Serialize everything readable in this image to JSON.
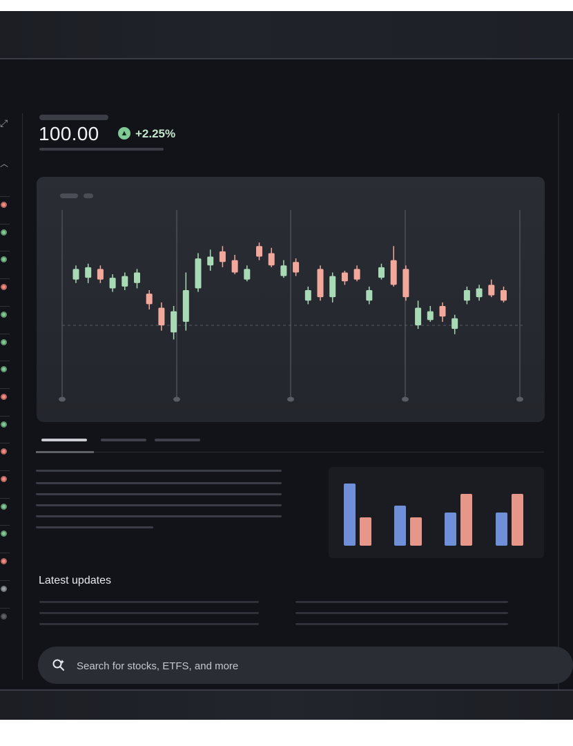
{
  "quote": {
    "price": "100.00",
    "change": "+2.25%",
    "change_icon": "trend-up-icon",
    "positive_color": "#81c995"
  },
  "rail": {
    "status": [
      "down",
      "up",
      "up",
      "down",
      "up",
      "up",
      "up",
      "down",
      "up",
      "down",
      "down",
      "up",
      "up",
      "down",
      "neutral",
      "neutral"
    ]
  },
  "chart_data": [
    {
      "type": "candlestick",
      "title": "",
      "xlabel": "",
      "ylabel": "",
      "grid": true,
      "reference_line": "dashed",
      "colors": {
        "up": "#a8dab5",
        "down": "#f2a89a"
      },
      "candles": [
        {
          "open": 26,
          "close": 32,
          "low": 24,
          "high": 34
        },
        {
          "open": 27,
          "close": 33,
          "low": 24,
          "high": 35
        },
        {
          "open": 32,
          "close": 26,
          "low": 24,
          "high": 34
        },
        {
          "open": 21,
          "close": 27,
          "low": 19,
          "high": 29
        },
        {
          "open": 22,
          "close": 28,
          "low": 20,
          "high": 30
        },
        {
          "open": 24,
          "close": 30,
          "low": 21,
          "high": 32
        },
        {
          "open": 18,
          "close": 12,
          "low": 9,
          "high": 20
        },
        {
          "open": 10,
          "close": 0,
          "low": -3,
          "high": 13
        },
        {
          "open": -4,
          "close": 8,
          "low": -8,
          "high": 11
        },
        {
          "open": 2,
          "close": 20,
          "low": -3,
          "high": 30
        },
        {
          "open": 21,
          "close": 38,
          "low": 19,
          "high": 41
        },
        {
          "open": 34,
          "close": 39,
          "low": 31,
          "high": 43
        },
        {
          "open": 42,
          "close": 36,
          "low": 33,
          "high": 45
        },
        {
          "open": 37,
          "close": 30,
          "low": 29,
          "high": 40
        },
        {
          "open": 26,
          "close": 32,
          "low": 25,
          "high": 34
        },
        {
          "open": 45,
          "close": 39,
          "low": 37,
          "high": 47
        },
        {
          "open": 41,
          "close": 34,
          "low": 33,
          "high": 44
        },
        {
          "open": 28,
          "close": 34,
          "low": 27,
          "high": 37
        },
        {
          "open": 36,
          "close": 30,
          "low": 28,
          "high": 38
        },
        {
          "open": 14,
          "close": 20,
          "low": 12,
          "high": 22
        },
        {
          "open": 32,
          "close": 16,
          "low": 14,
          "high": 34
        },
        {
          "open": 16,
          "close": 28,
          "low": 13,
          "high": 30
        },
        {
          "open": 30,
          "close": 25,
          "low": 23,
          "high": 31
        },
        {
          "open": 32,
          "close": 26,
          "low": 25,
          "high": 34
        },
        {
          "open": 14,
          "close": 20,
          "low": 12,
          "high": 22
        },
        {
          "open": 27,
          "close": 33,
          "low": 26,
          "high": 35
        },
        {
          "open": 37,
          "close": 23,
          "low": 22,
          "high": 45
        },
        {
          "open": 32,
          "close": 16,
          "low": 14,
          "high": 34
        },
        {
          "open": 0,
          "close": 10,
          "low": -2,
          "high": 14
        },
        {
          "open": 3,
          "close": 8,
          "low": 2,
          "high": 11
        },
        {
          "open": 11,
          "close": 5,
          "low": 2,
          "high": 13
        },
        {
          "open": -2,
          "close": 4,
          "low": -5,
          "high": 6
        },
        {
          "open": 14,
          "close": 20,
          "low": 12,
          "high": 22
        },
        {
          "open": 16,
          "close": 21,
          "low": 14,
          "high": 23
        },
        {
          "open": 23,
          "close": 17,
          "low": 16,
          "high": 26
        },
        {
          "open": 20,
          "close": 14,
          "low": 13,
          "high": 22
        }
      ]
    },
    {
      "type": "bar",
      "title": "",
      "xlabel": "",
      "ylabel": "",
      "categories": [
        "",
        "",
        "",
        ""
      ],
      "series": [
        {
          "color": "#6f8fd8",
          "values": [
            90,
            58,
            48,
            48
          ]
        },
        {
          "color": "#e6978a",
          "values": [
            41,
            41,
            75,
            75
          ]
        }
      ]
    }
  ],
  "updates": {
    "title": "Latest updates"
  },
  "search": {
    "placeholder": "Search for stocks, ETFS, and more",
    "icon": "search-icon"
  }
}
